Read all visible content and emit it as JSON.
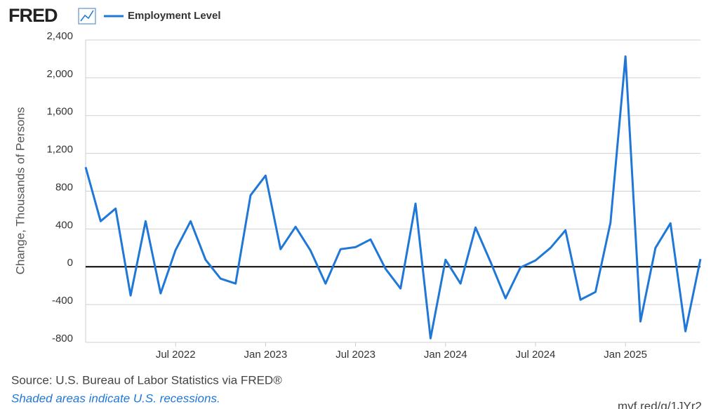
{
  "chart_data": {
    "type": "line",
    "logo": "FRED",
    "y_label": "Change, Thousands of Persons",
    "source": "Source: U.S. Bureau of Labor Statistics via FRED®",
    "note": "Shaded areas indicate U.S. recessions.",
    "url": "myf.red/g/1JYr2",
    "x": [
      "2022-01",
      "2022-02",
      "2022-03",
      "2022-04",
      "2022-05",
      "2022-06",
      "2022-07",
      "2022-08",
      "2022-09",
      "2022-10",
      "2022-11",
      "2022-12",
      "2023-01",
      "2023-02",
      "2023-03",
      "2023-04",
      "2023-05",
      "2023-06",
      "2023-07",
      "2023-08",
      "2023-09",
      "2023-10",
      "2023-11",
      "2023-12",
      "2024-01",
      "2024-02",
      "2024-03",
      "2024-04",
      "2024-05",
      "2024-06",
      "2024-07",
      "2024-08",
      "2024-09",
      "2024-10",
      "2024-11",
      "2024-12",
      "2025-01",
      "2025-02",
      "2025-03",
      "2025-04",
      "2025-05",
      "2025-06"
    ],
    "series": [
      {
        "name": "Employment Level",
        "color": "#1f77d8",
        "values": [
          1054,
          482,
          616,
          -304,
          482,
          -282,
          178,
          482,
          74,
          -126,
          -178,
          757,
          965,
          186,
          423,
          171,
          -178,
          186,
          208,
          289,
          -22,
          -230,
          668,
          -757,
          74,
          -178,
          416,
          52,
          -334,
          -7,
          67,
          200,
          386,
          -349,
          -267,
          467,
          2226,
          -579,
          200,
          460,
          -683,
          82
        ]
      }
    ],
    "xticks": [
      {
        "value": "2022-07",
        "label": "Jul 2022"
      },
      {
        "value": "2023-01",
        "label": "Jan 2023"
      },
      {
        "value": "2023-07",
        "label": "Jul 2023"
      },
      {
        "value": "2024-01",
        "label": "Jan 2024"
      },
      {
        "value": "2024-07",
        "label": "Jul 2024"
      },
      {
        "value": "2025-01",
        "label": "Jan 2025"
      }
    ],
    "ylim": [
      -800,
      2400
    ],
    "yticks": [
      -800,
      -400,
      0,
      400,
      800,
      {
        "value": 1200,
        "label": "1,200"
      },
      {
        "value": 1600,
        "label": "1,600"
      },
      {
        "value": 2000,
        "label": "2,000"
      },
      {
        "value": 2400,
        "label": "2,400"
      }
    ],
    "grid": true
  }
}
